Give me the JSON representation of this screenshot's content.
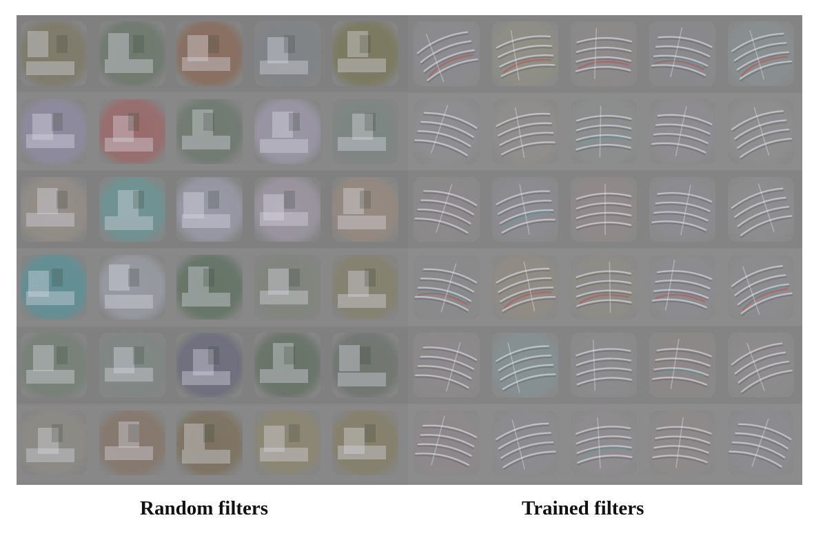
{
  "captions": {
    "random": "Random filters",
    "trained": "Trained filters"
  },
  "panels": {
    "random": {
      "rows": [
        {
          "name": "row-1",
          "tints": [
            "#7f7c6a",
            "#6f7a6e",
            "#8a6e5e",
            "#808488",
            "#7c7a5e"
          ]
        },
        {
          "name": "row-2",
          "tints": [
            "#8f8aa0",
            "#9a6a6a",
            "#6f7a70",
            "#9a96a6",
            "#7d8682"
          ]
        },
        {
          "name": "row-3",
          "tints": [
            "#958e88",
            "#6f9494",
            "#999aa8",
            "#9c96a2",
            "#978a80"
          ]
        },
        {
          "name": "row-4",
          "tints": [
            "#5f8f95",
            "#979aa2",
            "#647466",
            "#7f857c",
            "#85816e"
          ]
        },
        {
          "name": "row-5",
          "tints": [
            "#778278",
            "#808884",
            "#6e6e7e",
            "#687468",
            "#707670"
          ]
        },
        {
          "name": "row-6",
          "tints": [
            "#8c8a84",
            "#86786c",
            "#7d7260",
            "#8c8672",
            "#86806a"
          ]
        }
      ]
    },
    "trained": {
      "rows": [
        {
          "name": "row-1",
          "tints": [
            "#8c8c90",
            "#909086",
            "#8e8a8a",
            "#8a8a8e",
            "#8a9090"
          ]
        },
        {
          "name": "row-2",
          "tints": [
            "#8e8e92",
            "#908e8c",
            "#8c8e8e",
            "#8e8c90",
            "#8e8e8e"
          ]
        },
        {
          "name": "row-3",
          "tints": [
            "#8e8a8c",
            "#8c8c92",
            "#928a8a",
            "#8c8c92",
            "#8e8e90"
          ]
        },
        {
          "name": "row-4",
          "tints": [
            "#8a8a8c",
            "#908c84",
            "#8e8c86",
            "#8c8c90",
            "#8c8c8e"
          ]
        },
        {
          "name": "row-5",
          "tints": [
            "#8e8a8c",
            "#869294",
            "#8c8c8e",
            "#8e8888",
            "#8e8c8c"
          ]
        },
        {
          "name": "row-6",
          "tints": [
            "#8e888a",
            "#8c8c90",
            "#8e8c8e",
            "#8e8a8a",
            "#8c8c90"
          ]
        }
      ]
    }
  }
}
